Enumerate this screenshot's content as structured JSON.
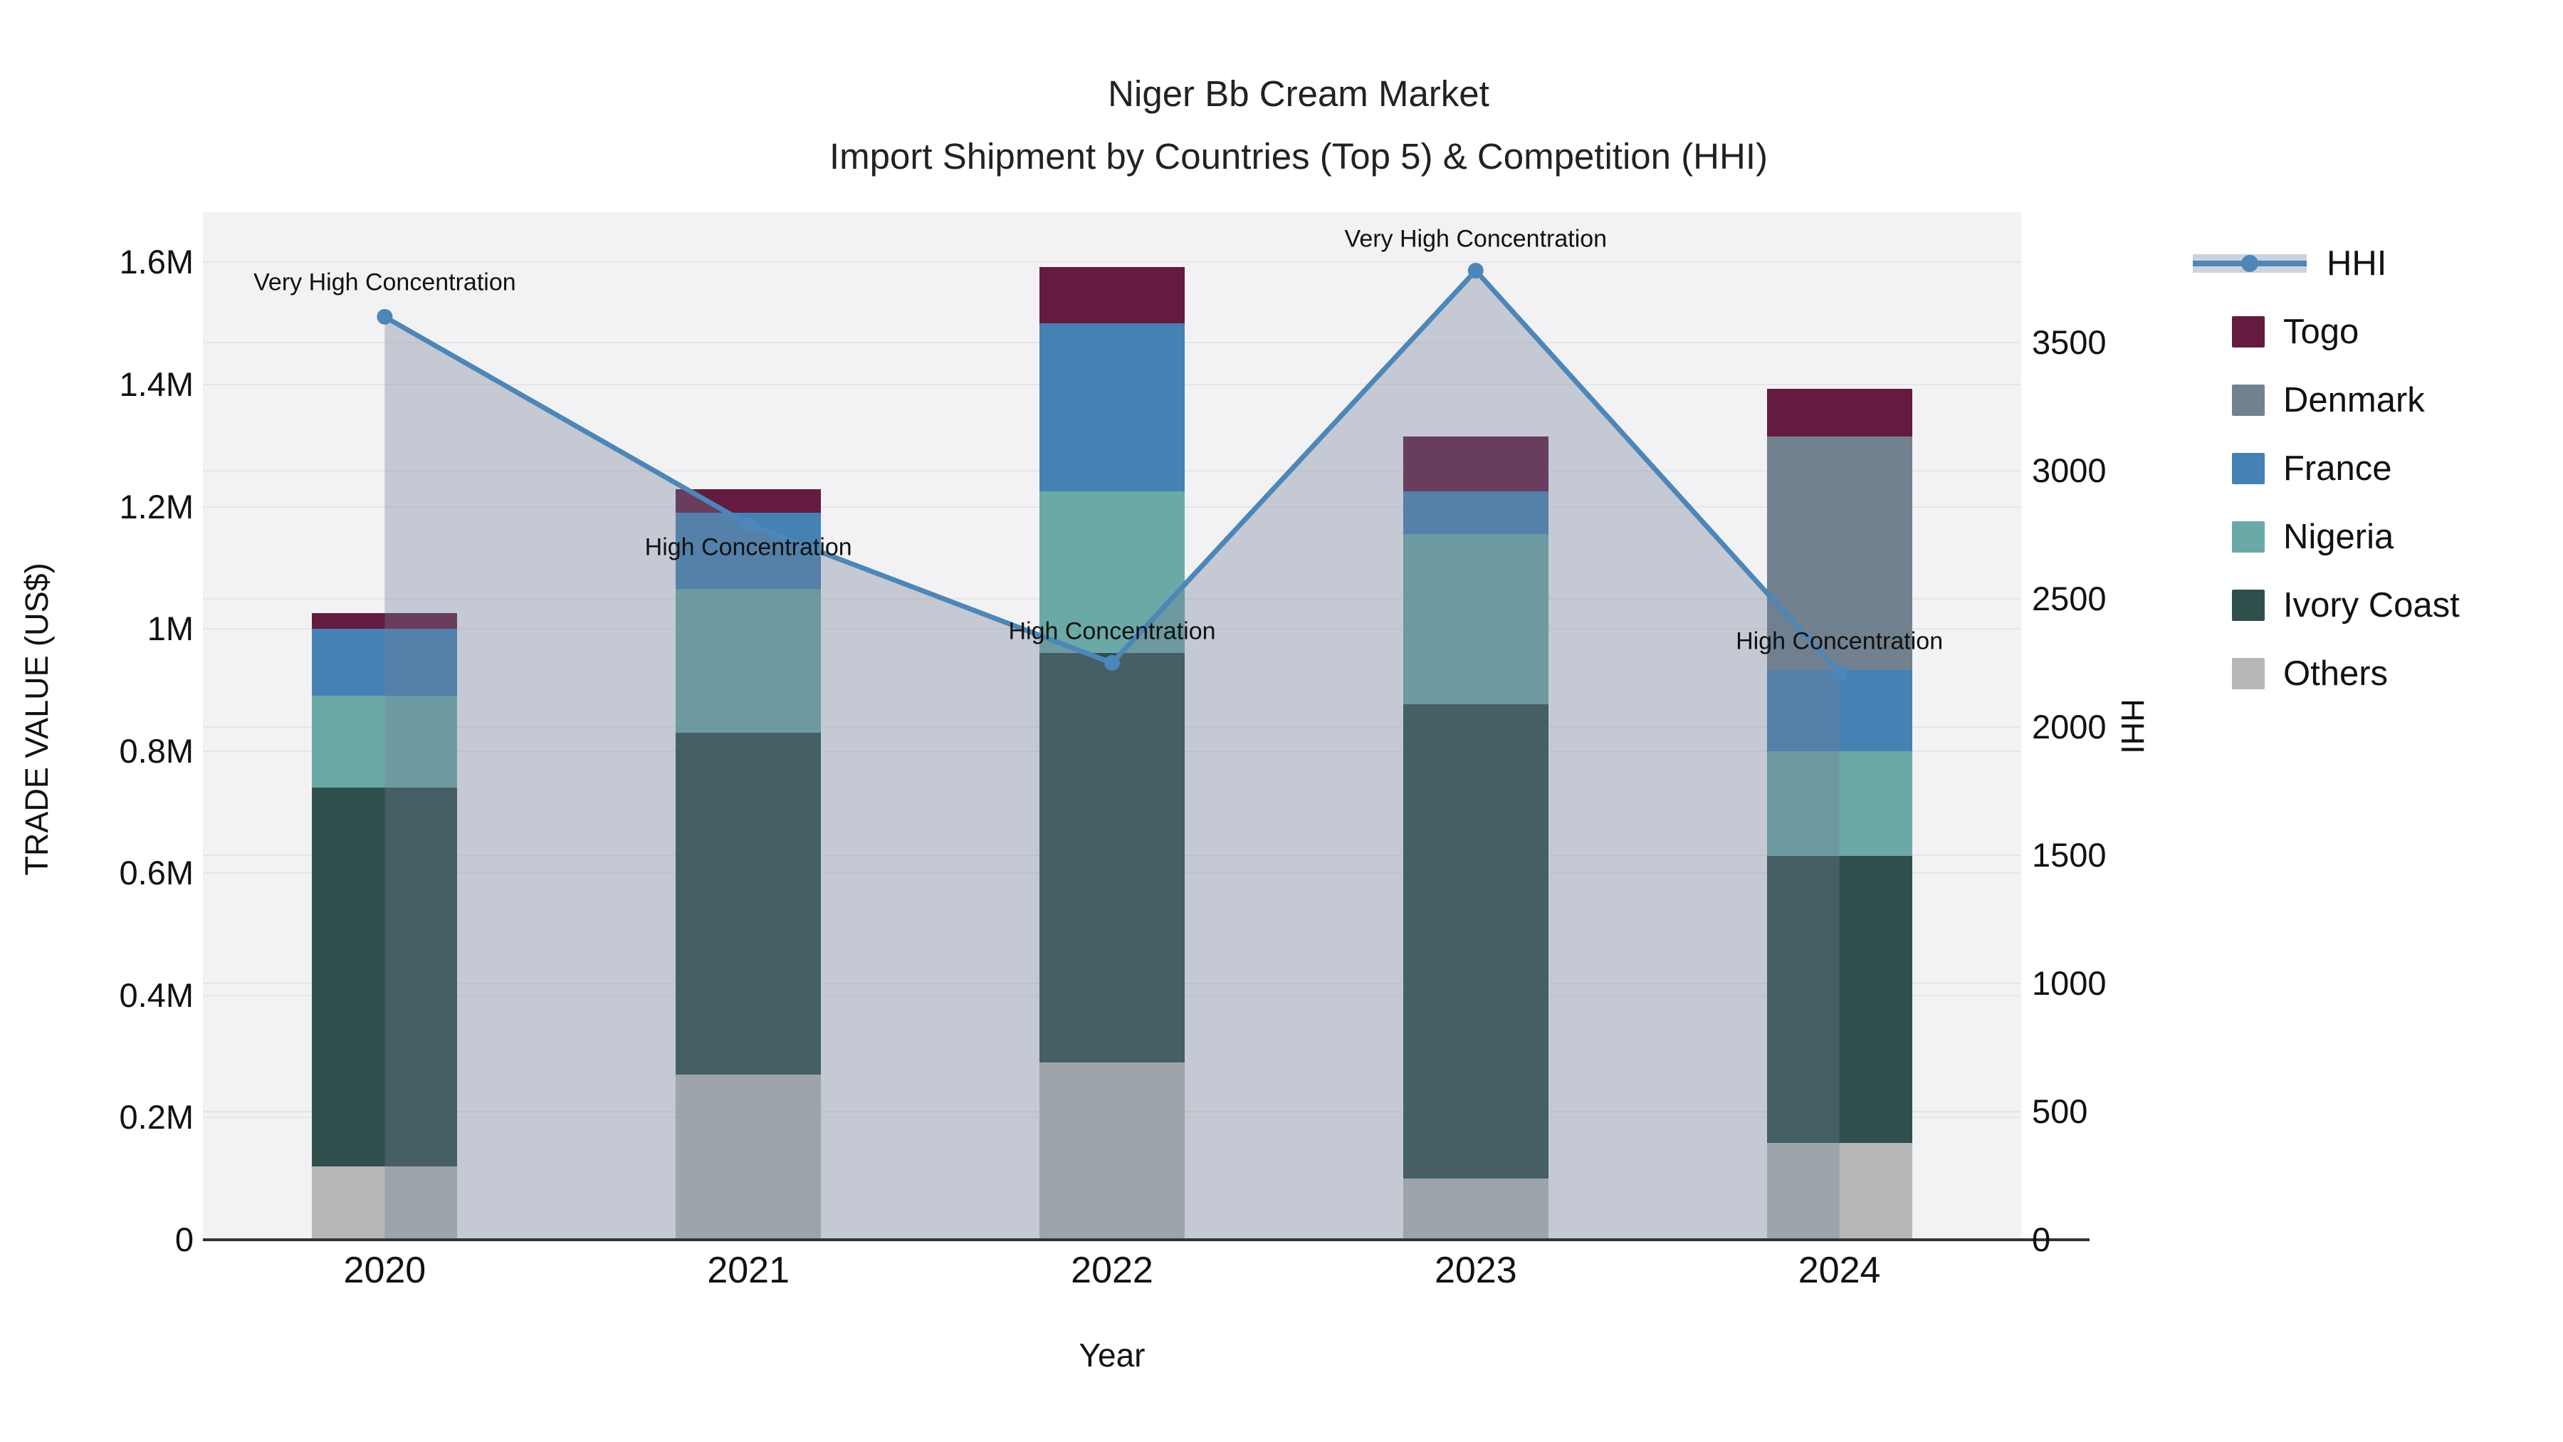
{
  "title": {
    "line1": "Niger Bb Cream Market",
    "line2": "Import Shipment by Countries (Top 5) & Competition (HHI)"
  },
  "palette": {
    "togo": "#651B3F",
    "denmark": "#72818F",
    "france": "#4681B4",
    "nigeria": "#6AA9A6",
    "ivory_coast": "#2F4F4C",
    "others": "#B5B8B6",
    "hhi_line": "#4D86B8",
    "hhi_legend_band": "#CCD3DD",
    "area_fill": "rgba(112,127,150,0.35)",
    "plot_bg": "#F2F2F4",
    "grid": "#E6E6E6",
    "axis_line": "#333333",
    "text": "#111111"
  },
  "axes": {
    "left": {
      "title": "TRADE VALUE (US$)",
      "max": 1682000,
      "ticks": [
        {
          "value": 0,
          "label": "0"
        },
        {
          "value": 200000,
          "label": "0.2M"
        },
        {
          "value": 400000,
          "label": "0.4M"
        },
        {
          "value": 600000,
          "label": "0.6M"
        },
        {
          "value": 800000,
          "label": "0.8M"
        },
        {
          "value": 1000000,
          "label": "1M"
        },
        {
          "value": 1200000,
          "label": "1.2M"
        },
        {
          "value": 1400000,
          "label": "1.4M"
        },
        {
          "value": 1600000,
          "label": "1.6M"
        }
      ]
    },
    "right": {
      "title": "HHI",
      "max": 4008,
      "ticks": [
        {
          "value": 0,
          "label": "0"
        },
        {
          "value": 500,
          "label": "500"
        },
        {
          "value": 1000,
          "label": "1000"
        },
        {
          "value": 1500,
          "label": "1500"
        },
        {
          "value": 2000,
          "label": "2000"
        },
        {
          "value": 2500,
          "label": "2500"
        },
        {
          "value": 3000,
          "label": "3000"
        },
        {
          "value": 3500,
          "label": "3500"
        }
      ]
    },
    "x": {
      "title": "Year"
    }
  },
  "legend_order": [
    {
      "name": "HHI",
      "type": "line",
      "color_key": "hhi_line"
    },
    {
      "name": "Togo",
      "type": "square",
      "color_key": "togo"
    },
    {
      "name": "Denmark",
      "type": "square",
      "color_key": "denmark"
    },
    {
      "name": "France",
      "type": "square",
      "color_key": "france"
    },
    {
      "name": "Nigeria",
      "type": "square",
      "color_key": "nigeria"
    },
    {
      "name": "Ivory Coast",
      "type": "square",
      "color_key": "ivory_coast"
    },
    {
      "name": "Others",
      "type": "square",
      "color_key": "others"
    }
  ],
  "chart_data": {
    "type": "bar+line",
    "title": "Niger Bb Cream Market — Import Shipment by Countries (Top 5) & Competition (HHI)",
    "xlabel": "Year",
    "ylabel": "TRADE VALUE (US$)",
    "y2label": "HHI",
    "ylim": [
      0,
      1682000
    ],
    "y2lim": [
      0,
      4008
    ],
    "grid": true,
    "legend_position": "right",
    "categories": [
      "2020",
      "2021",
      "2022",
      "2023",
      "2024"
    ],
    "series": [
      {
        "name": "Others",
        "key": "others",
        "values": [
          120000,
          270000,
          290000,
          100000,
          158000
        ]
      },
      {
        "name": "Ivory Coast",
        "key": "ivory_coast",
        "values": [
          620000,
          560000,
          670000,
          777000,
          470000
        ]
      },
      {
        "name": "Nigeria",
        "key": "nigeria",
        "values": [
          150000,
          235000,
          265000,
          278000,
          172000
        ]
      },
      {
        "name": "France",
        "key": "france",
        "values": [
          110000,
          125000,
          275000,
          70000,
          132000
        ]
      },
      {
        "name": "Denmark",
        "key": "denmark",
        "values": [
          0,
          0,
          0,
          0,
          383000
        ]
      },
      {
        "name": "Togo",
        "key": "togo",
        "values": [
          26000,
          38000,
          92000,
          90000,
          78000
        ]
      }
    ],
    "line_series": {
      "name": "HHI",
      "key": "hhi_line",
      "axis": "right",
      "values": [
        3600,
        2790,
        2250,
        3780,
        2210
      ]
    },
    "annotations": [
      {
        "text": "Very High Concentration",
        "year": "2020",
        "dy": -48
      },
      {
        "text": "High Concentration",
        "year": "2021",
        "dy": 32
      },
      {
        "text": "High Concentration",
        "year": "2022",
        "dy": -44
      },
      {
        "text": "Very High Concentration",
        "year": "2023",
        "dy": -44
      },
      {
        "text": "High Concentration",
        "year": "2024",
        "dy": -44
      }
    ]
  }
}
